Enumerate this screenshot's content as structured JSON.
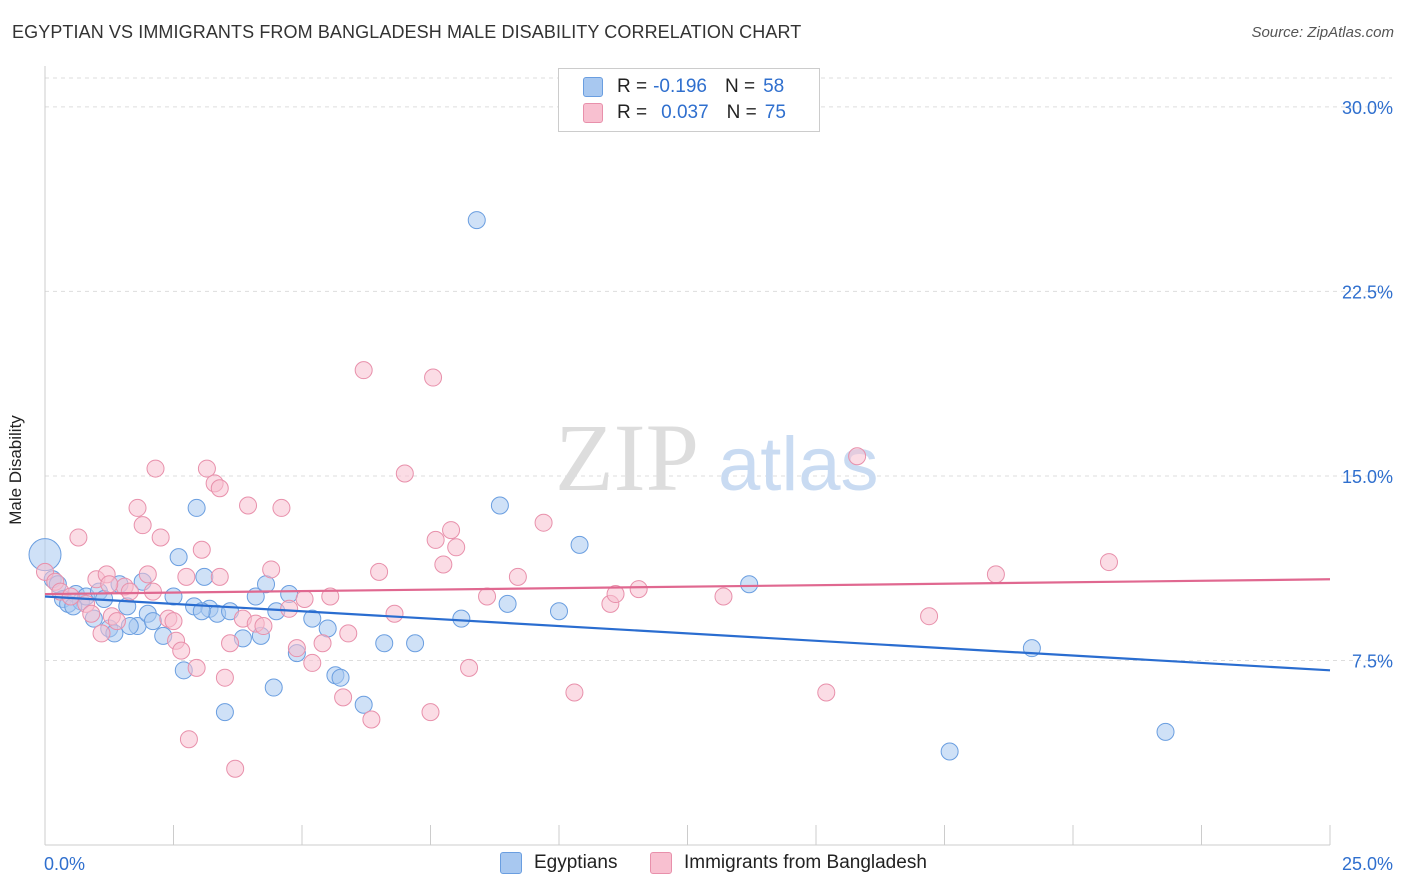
{
  "title": "EGYPTIAN VS IMMIGRANTS FROM BANGLADESH MALE DISABILITY CORRELATION CHART",
  "source": "Source: ZipAtlas.com",
  "watermark": {
    "zip": "ZIP",
    "atlas": "atlas"
  },
  "legend": {
    "r_label": "R =",
    "n_label": "N =",
    "rows": [
      {
        "r": "-0.196",
        "n": "58",
        "color": "#a8c8f0",
        "border": "#6a9ee0"
      },
      {
        "r": "0.037",
        "n": "75",
        "color": "#f8c0d0",
        "border": "#e890ab"
      }
    ]
  },
  "chart_data": {
    "type": "scatter",
    "title": "EGYPTIAN VS IMMIGRANTS FROM BANGLADESH MALE DISABILITY CORRELATION CHART",
    "xlabel": "",
    "ylabel": "Male Disability",
    "xlim": [
      0,
      25
    ],
    "ylim": [
      0,
      31.5
    ],
    "x_tick_labels": [
      "0.0%",
      "25.0%"
    ],
    "y_ticks": [
      7.5,
      15.0,
      22.5,
      30.0
    ],
    "y_tick_labels": [
      "7.5%",
      "15.0%",
      "22.5%",
      "30.0%"
    ],
    "grid": true,
    "legend_position": "top-center",
    "series": [
      {
        "name": "Egyptians",
        "color": "#6a9ee0",
        "fill": "#a8c8f0",
        "trend": {
          "x": [
            0,
            25
          ],
          "y": [
            10.1,
            7.1
          ]
        },
        "points": [
          [
            0.0,
            11.8
          ],
          [
            0.15,
            10.8
          ],
          [
            0.25,
            10.6
          ],
          [
            0.35,
            10.0
          ],
          [
            0.45,
            9.8
          ],
          [
            0.6,
            10.2
          ],
          [
            0.7,
            9.9
          ],
          [
            0.8,
            10.1
          ],
          [
            0.95,
            9.2
          ],
          [
            1.05,
            10.3
          ],
          [
            1.15,
            10.0
          ],
          [
            1.25,
            8.8
          ],
          [
            1.35,
            8.6
          ],
          [
            1.45,
            10.6
          ],
          [
            1.6,
            9.7
          ],
          [
            1.8,
            8.9
          ],
          [
            1.9,
            10.7
          ],
          [
            2.0,
            9.4
          ],
          [
            2.1,
            9.1
          ],
          [
            2.3,
            8.5
          ],
          [
            2.5,
            10.1
          ],
          [
            2.6,
            11.7
          ],
          [
            2.9,
            9.7
          ],
          [
            2.95,
            13.7
          ],
          [
            3.1,
            10.9
          ],
          [
            3.2,
            9.6
          ],
          [
            3.35,
            9.4
          ],
          [
            3.5,
            5.4
          ],
          [
            3.6,
            9.5
          ],
          [
            3.85,
            8.4
          ],
          [
            4.1,
            10.1
          ],
          [
            4.2,
            8.5
          ],
          [
            4.3,
            10.6
          ],
          [
            4.5,
            9.5
          ],
          [
            4.75,
            10.2
          ],
          [
            4.9,
            7.8
          ],
          [
            5.2,
            9.2
          ],
          [
            5.5,
            8.8
          ],
          [
            5.65,
            6.9
          ],
          [
            6.2,
            5.7
          ],
          [
            6.6,
            8.2
          ],
          [
            7.2,
            8.2
          ],
          [
            8.1,
            9.2
          ],
          [
            8.4,
            25.4
          ],
          [
            8.85,
            13.8
          ],
          [
            9.0,
            9.8
          ],
          [
            10.0,
            9.5
          ],
          [
            10.4,
            12.2
          ],
          [
            13.7,
            10.6
          ],
          [
            19.2,
            8.0
          ],
          [
            21.8,
            4.6
          ],
          [
            17.6,
            3.8
          ],
          [
            1.65,
            8.9
          ],
          [
            0.55,
            9.7
          ],
          [
            2.7,
            7.1
          ],
          [
            5.75,
            6.8
          ],
          [
            4.45,
            6.4
          ],
          [
            3.05,
            9.5
          ]
        ]
      },
      {
        "name": "Immigrants from Bangladesh",
        "color": "#e890ab",
        "fill": "#f8c0d0",
        "trend": {
          "x": [
            0,
            25
          ],
          "y": [
            10.2,
            10.8
          ]
        },
        "points": [
          [
            0.0,
            11.1
          ],
          [
            0.2,
            10.7
          ],
          [
            0.3,
            10.3
          ],
          [
            0.5,
            10.1
          ],
          [
            0.65,
            12.5
          ],
          [
            0.8,
            9.8
          ],
          [
            0.9,
            9.4
          ],
          [
            1.0,
            10.8
          ],
          [
            1.1,
            8.6
          ],
          [
            1.2,
            11.0
          ],
          [
            1.3,
            9.3
          ],
          [
            1.4,
            9.1
          ],
          [
            1.55,
            10.5
          ],
          [
            1.65,
            10.3
          ],
          [
            1.8,
            13.7
          ],
          [
            1.9,
            13.0
          ],
          [
            2.0,
            11.0
          ],
          [
            2.1,
            10.3
          ],
          [
            2.15,
            15.3
          ],
          [
            2.25,
            12.5
          ],
          [
            2.4,
            9.2
          ],
          [
            2.5,
            9.1
          ],
          [
            2.55,
            8.3
          ],
          [
            2.65,
            7.9
          ],
          [
            2.75,
            10.9
          ],
          [
            2.8,
            4.3
          ],
          [
            2.95,
            7.2
          ],
          [
            3.05,
            12.0
          ],
          [
            3.15,
            15.3
          ],
          [
            3.3,
            14.7
          ],
          [
            3.4,
            10.9
          ],
          [
            3.5,
            6.8
          ],
          [
            3.6,
            8.2
          ],
          [
            3.7,
            3.1
          ],
          [
            3.85,
            9.2
          ],
          [
            3.95,
            13.8
          ],
          [
            4.1,
            9.0
          ],
          [
            4.25,
            8.9
          ],
          [
            4.4,
            11.2
          ],
          [
            4.6,
            13.7
          ],
          [
            4.75,
            9.6
          ],
          [
            4.9,
            8.0
          ],
          [
            5.05,
            10.0
          ],
          [
            5.2,
            7.4
          ],
          [
            5.4,
            8.2
          ],
          [
            5.55,
            10.1
          ],
          [
            5.8,
            6.0
          ],
          [
            5.9,
            8.6
          ],
          [
            6.2,
            19.3
          ],
          [
            6.35,
            5.1
          ],
          [
            6.5,
            11.1
          ],
          [
            6.8,
            9.4
          ],
          [
            7.0,
            15.1
          ],
          [
            7.5,
            5.4
          ],
          [
            7.6,
            12.4
          ],
          [
            7.75,
            11.4
          ],
          [
            7.9,
            12.8
          ],
          [
            8.0,
            12.1
          ],
          [
            8.25,
            7.2
          ],
          [
            8.6,
            10.1
          ],
          [
            9.2,
            10.9
          ],
          [
            9.7,
            13.1
          ],
          [
            10.3,
            6.2
          ],
          [
            11.0,
            9.8
          ],
          [
            11.1,
            10.2
          ],
          [
            11.55,
            10.4
          ],
          [
            13.2,
            10.1
          ],
          [
            15.2,
            6.2
          ],
          [
            15.8,
            15.8
          ],
          [
            17.2,
            9.3
          ],
          [
            18.5,
            11.0
          ],
          [
            20.7,
            11.5
          ],
          [
            7.55,
            19.0
          ],
          [
            3.4,
            14.5
          ],
          [
            1.25,
            10.6
          ]
        ]
      }
    ]
  },
  "bottom_legend": [
    "Egyptians",
    "Immigrants from Bangladesh"
  ]
}
